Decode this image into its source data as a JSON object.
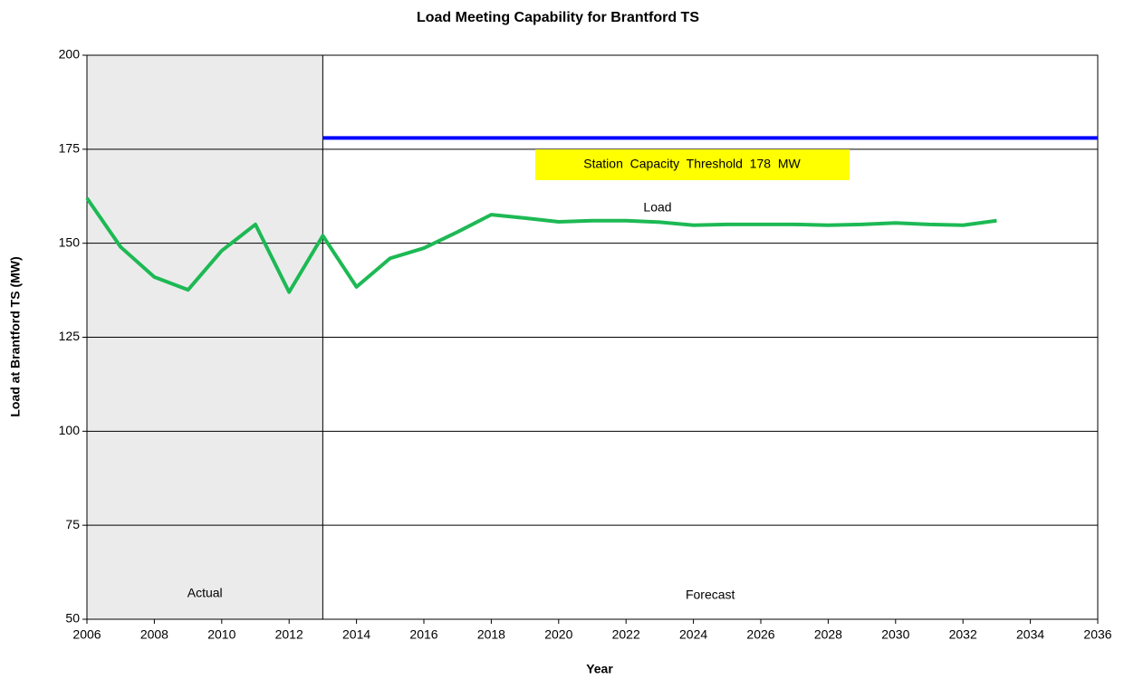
{
  "chart_data": {
    "type": "line",
    "title": "Load Meeting Capability for Brantford TS",
    "x_label": "Year",
    "y_label": "Load at Brantford TS (MW)",
    "xlim": [
      2006,
      2036
    ],
    "xticks": [
      2006,
      2008,
      2010,
      2012,
      2014,
      2016,
      2018,
      2020,
      2022,
      2024,
      2026,
      2028,
      2030,
      2032,
      2034,
      2036
    ],
    "ylim": [
      50,
      200
    ],
    "yticks": [
      50,
      75,
      100,
      125,
      150,
      175,
      200
    ],
    "grid": true,
    "shaded_region": {
      "xlim": [
        2006,
        2013
      ],
      "color": "#ebebeb",
      "label": "Actual"
    },
    "forecast_label": "Forecast",
    "series": [
      {
        "name": "Load",
        "color": "#1db954",
        "x": [
          2006,
          2007,
          2008,
          2009,
          2010,
          2011,
          2012,
          2013,
          2014,
          2015,
          2016,
          2017,
          2018,
          2019,
          2020,
          2021,
          2022,
          2023,
          2024,
          2025,
          2026,
          2027,
          2028,
          2029,
          2030,
          2031,
          2032,
          2033
        ],
        "values": [
          162,
          149,
          141,
          137.6,
          148,
          155,
          137,
          152,
          138.4,
          146,
          148.7,
          153,
          157.6,
          156.7,
          155.7,
          156,
          156,
          155.6,
          154.8,
          155,
          155,
          155,
          154.8,
          155,
          155.4,
          155,
          154.8,
          156
        ]
      },
      {
        "name": "Station  Capacity  Threshold  178  MW",
        "color": "#0000ff",
        "x": [
          2013,
          2036
        ],
        "values": [
          178,
          178
        ]
      }
    ]
  }
}
